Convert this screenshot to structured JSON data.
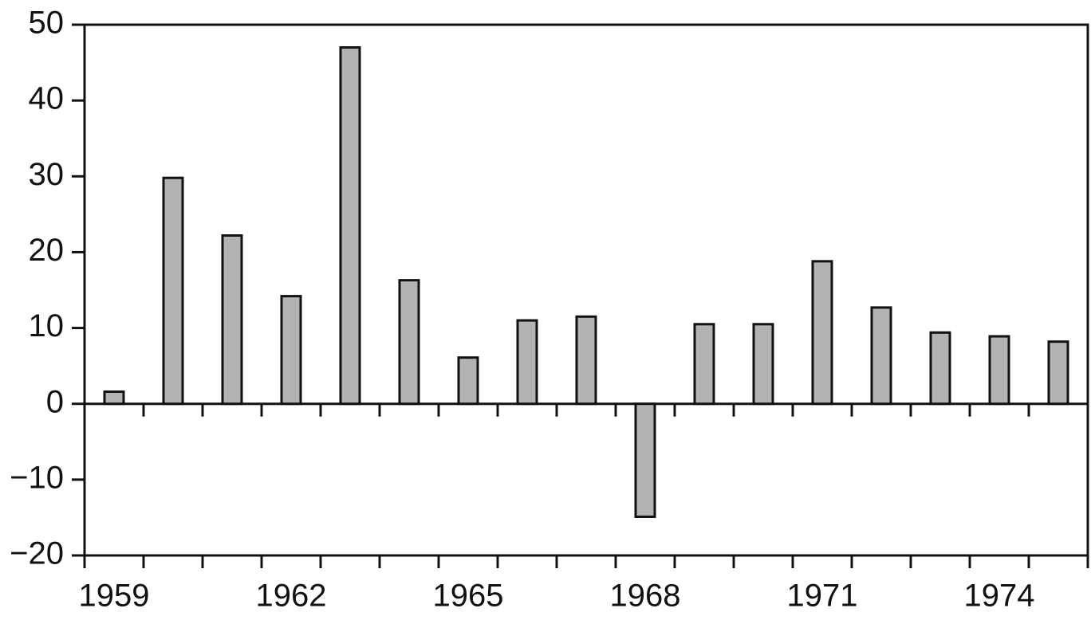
{
  "chart_data": {
    "type": "bar",
    "categories": [
      "1959",
      null,
      null,
      "1962",
      null,
      null,
      "1965",
      null,
      null,
      "1968",
      null,
      null,
      "1971",
      null,
      null,
      "1974",
      null
    ],
    "values": [
      1.6,
      29.8,
      22.2,
      14.2,
      47.0,
      16.3,
      6.1,
      11.0,
      11.5,
      -14.9,
      10.5,
      10.5,
      18.8,
      12.7,
      9.4,
      8.9,
      8.2
    ],
    "color": "#b3b3b3",
    "ylim": [
      -20,
      50
    ],
    "yticks": [
      {
        "value": -20,
        "label": "−20"
      },
      {
        "value": -10,
        "label": "−10"
      },
      0,
      10,
      20,
      30,
      40,
      50
    ],
    "grid": false
  }
}
